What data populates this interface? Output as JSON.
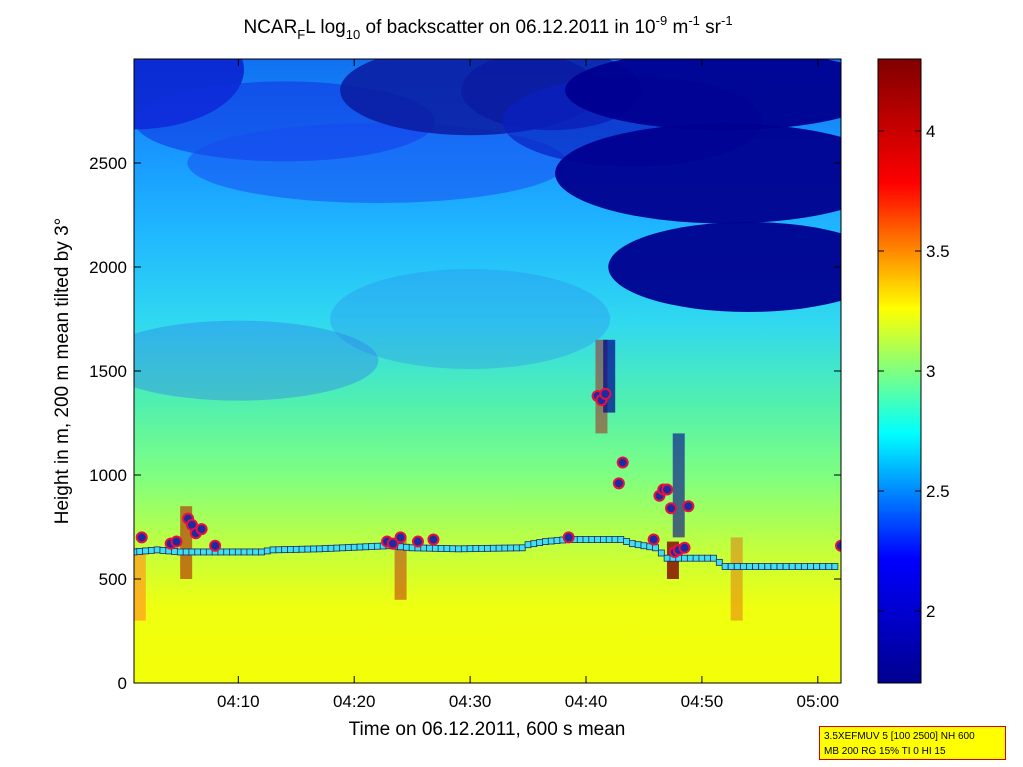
{
  "chart_data": {
    "type": "heatmap",
    "title_parts": [
      "NCAR",
      "F",
      "L log",
      "10",
      " of backscatter on 06.12.2011 in 10",
      "-9",
      " m",
      "-1",
      " sr",
      "-1"
    ],
    "xlabel": "Time on 06.12.2011, 600 s mean",
    "ylabel": "Height in m, 200 m mean tilted by 3°",
    "x_range": [
      "04:01:00",
      "05:02:00"
    ],
    "x_ticks": [
      "04:10",
      "04:20",
      "04:30",
      "04:40",
      "04:50",
      "05:00"
    ],
    "y_range": [
      0,
      3000
    ],
    "y_ticks": [
      "0",
      "500",
      "1000",
      "1500",
      "2000",
      "2500"
    ],
    "colorbar": {
      "range": [
        1.7,
        4.3
      ],
      "ticks": [
        "2",
        "2.5",
        "3",
        "3.5",
        "4"
      ],
      "colormap": "jet",
      "colors": [
        "#00008f",
        "#0000ff",
        "#00ffff",
        "#ffff00",
        "#ff0000",
        "#800000"
      ]
    },
    "background_color": "#40e0d0",
    "cloud_base_series": {
      "name": "",
      "marker_color": "#40e0f0",
      "points": [
        [
          "04:01:00",
          630
        ],
        [
          "04:03:00",
          640
        ],
        [
          "04:05:00",
          630
        ],
        [
          "04:08:00",
          630
        ],
        [
          "04:12:00",
          630
        ],
        [
          "04:13:00",
          640
        ],
        [
          "04:17:00",
          645
        ],
        [
          "04:23:00",
          660
        ],
        [
          "04:25:00",
          650
        ],
        [
          "04:29:00",
          645
        ],
        [
          "04:34:30",
          650
        ],
        [
          "04:35:00",
          665
        ],
        [
          "04:36:30",
          680
        ],
        [
          "04:38:30",
          690
        ],
        [
          "04:43:00",
          690
        ],
        [
          "04:44:00",
          670
        ],
        [
          "04:46:00",
          650
        ],
        [
          "04:47:00",
          600
        ],
        [
          "04:51:00",
          600
        ],
        [
          "04:52:00",
          560
        ],
        [
          "05:02:00",
          560
        ]
      ]
    },
    "event_points": {
      "name": "",
      "fill_color": "#1e2aa0",
      "ring_color": "#e81040",
      "points": [
        [
          "04:01:40",
          700
        ],
        [
          "04:04:10",
          670
        ],
        [
          "04:04:40",
          680
        ],
        [
          "04:05:40",
          790
        ],
        [
          "04:06:00",
          760
        ],
        [
          "04:06:20",
          720
        ],
        [
          "04:06:50",
          740
        ],
        [
          "04:08:00",
          660
        ],
        [
          "04:22:50",
          680
        ],
        [
          "04:23:20",
          670
        ],
        [
          "04:24:00",
          700
        ],
        [
          "04:25:30",
          680
        ],
        [
          "04:26:50",
          690
        ],
        [
          "04:38:30",
          700
        ],
        [
          "04:41:00",
          1380
        ],
        [
          "04:41:20",
          1360
        ],
        [
          "04:41:40",
          1390
        ],
        [
          "04:42:50",
          960
        ],
        [
          "04:43:10",
          1060
        ],
        [
          "04:45:50",
          690
        ],
        [
          "04:46:20",
          900
        ],
        [
          "04:46:40",
          930
        ],
        [
          "04:47:00",
          930
        ],
        [
          "04:47:20",
          840
        ],
        [
          "04:47:40",
          630
        ],
        [
          "04:48:00",
          640
        ],
        [
          "04:48:30",
          650
        ],
        [
          "04:48:50",
          850
        ],
        [
          "05:02:00",
          660
        ]
      ]
    }
  },
  "info_box": {
    "line1": "3.5XEFMUV 5 [100 2500] NH 600",
    "line2": "MB 200 RG 15% TI 0 HI 15"
  }
}
